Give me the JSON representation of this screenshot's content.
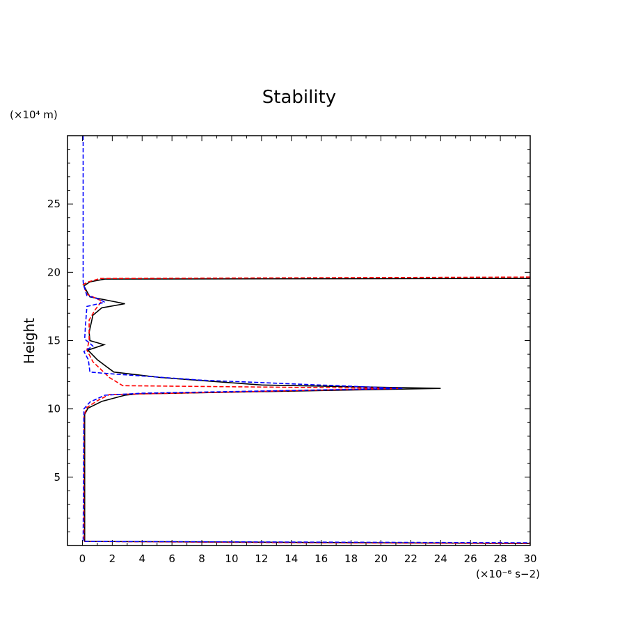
{
  "chart_data": {
    "type": "line",
    "title": "Stability",
    "xlabel": "",
    "ylabel": "Height",
    "x_unit_label": "(×10⁻⁶ s−2)",
    "y_unit_label": "(×10⁴ m)",
    "xlim": [
      -1,
      30
    ],
    "ylim": [
      0,
      30
    ],
    "x_ticks": [
      0,
      2,
      4,
      6,
      8,
      10,
      12,
      14,
      16,
      18,
      20,
      22,
      24,
      26,
      28,
      30
    ],
    "y_ticks": [
      5,
      10,
      15,
      20,
      25
    ],
    "grid": false,
    "series": [
      {
        "color": "#000000",
        "style": "solid",
        "points": [
          [
            30,
            19.55
          ],
          [
            1.5,
            19.5
          ],
          [
            0.5,
            19.3
          ],
          [
            0.1,
            19.0
          ],
          [
            0.5,
            18.2
          ],
          [
            2.85,
            17.7
          ],
          [
            1.3,
            17.4
          ],
          [
            0.7,
            16.85
          ],
          [
            0.45,
            15.6
          ],
          [
            0.5,
            15.0
          ],
          [
            1.45,
            14.7
          ],
          [
            0.37,
            14.3
          ],
          [
            1.0,
            13.6
          ],
          [
            1.6,
            13.1
          ],
          [
            2.1,
            12.7
          ],
          [
            5.2,
            12.3
          ],
          [
            12,
            11.75
          ],
          [
            24.0,
            11.5
          ],
          [
            3.7,
            11.1
          ],
          [
            2.85,
            11.0
          ],
          [
            1.3,
            10.55
          ],
          [
            0.37,
            10.05
          ],
          [
            0.15,
            9.6
          ],
          [
            0.15,
            0.3
          ],
          [
            30,
            0.15
          ]
        ]
      },
      {
        "color": "#ff0000",
        "style": "dashed",
        "points": [
          [
            30,
            19.65
          ],
          [
            1.2,
            19.55
          ],
          [
            0.4,
            19.3
          ],
          [
            0.05,
            19.1
          ],
          [
            0.3,
            18.4
          ],
          [
            1.3,
            17.9
          ],
          [
            0.85,
            17.25
          ],
          [
            0.45,
            16.5
          ],
          [
            0.45,
            15.0
          ],
          [
            0.3,
            14.3
          ],
          [
            0.7,
            13.45
          ],
          [
            1.8,
            12.3
          ],
          [
            2.7,
            11.7
          ],
          [
            21.3,
            11.5
          ],
          [
            4,
            11.1
          ],
          [
            1.8,
            11.05
          ],
          [
            1.0,
            10.6
          ],
          [
            0.3,
            10.1
          ],
          [
            0.1,
            9.5
          ],
          [
            0.1,
            0.3
          ],
          [
            15,
            0.2
          ],
          [
            30,
            0.15
          ]
        ]
      },
      {
        "color": "#0000ff",
        "style": "dashed",
        "points": [
          [
            0.05,
            30
          ],
          [
            0.05,
            19.3
          ],
          [
            0.1,
            19.0
          ],
          [
            0.3,
            18.3
          ],
          [
            1.2,
            18.0
          ],
          [
            1.5,
            17.8
          ],
          [
            0.3,
            17.5
          ],
          [
            0.2,
            16.0
          ],
          [
            0.15,
            15.1
          ],
          [
            0.5,
            14.8
          ],
          [
            0.7,
            14.6
          ],
          [
            0.1,
            14.2
          ],
          [
            0.4,
            13.6
          ],
          [
            0.5,
            12.7
          ],
          [
            1.5,
            12.6
          ],
          [
            8,
            12.1
          ],
          [
            21.5,
            11.5
          ],
          [
            4,
            11.15
          ],
          [
            1.5,
            11.0
          ],
          [
            0.5,
            10.5
          ],
          [
            0.1,
            10.0
          ],
          [
            0.05,
            0.3
          ],
          [
            30,
            0.2
          ]
        ]
      }
    ]
  }
}
